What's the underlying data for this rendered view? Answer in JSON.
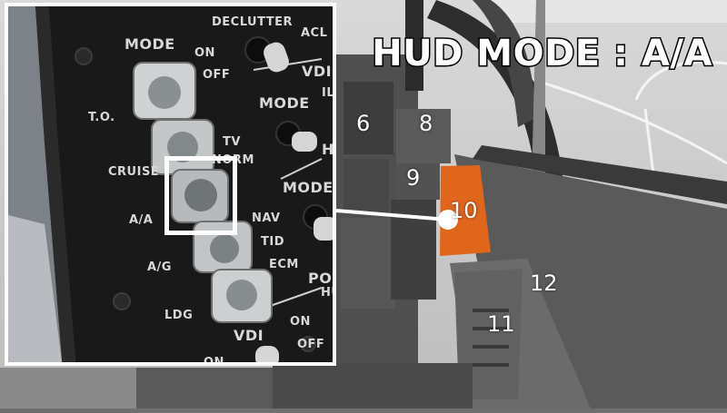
{
  "hud_title": "HUD MODE : A/A",
  "cockpit_numbers": {
    "n6": "6",
    "n8": "8",
    "n9": "9",
    "n10": "10",
    "n11": "11",
    "n12": "12"
  },
  "panel_labels": {
    "mode": "MODE",
    "on": "ON",
    "off": "OFF",
    "declutter": "DECLUTTER",
    "acl": "ACL",
    "vdi": "VDI",
    "ils": "ILS",
    "mode2": "MODE",
    "to": "T.O.",
    "tv": "TV",
    "norm": "NORM",
    "hi": "HI",
    "cruise": "CRUISE",
    "mode3": "MODE",
    "aa": "A/A",
    "nav": "NAV",
    "tid": "TID",
    "ag": "A/G",
    "ecm": "ECM",
    "pow": "POW",
    "hu": "HU",
    "ldg": "LDG",
    "vdi2": "VDI",
    "on2": "ON",
    "off2": "OFF",
    "on3": "ON"
  },
  "colors": {
    "highlight": "#e0661c",
    "frame": "#ffffff"
  }
}
